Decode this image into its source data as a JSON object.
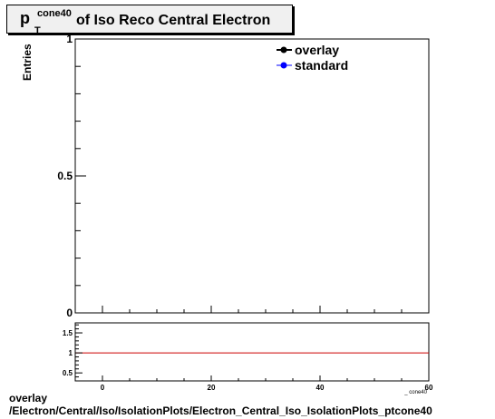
{
  "chart_data": {
    "type": "line",
    "title": {
      "base": "p",
      "sup": "cone40",
      "sub": "T",
      "rest": "of Iso Reco Central  Electron"
    },
    "ylabel": "Entries",
    "xlabel": "_ cone40",
    "xlim": [
      -5,
      60
    ],
    "ylim": [
      0,
      1
    ],
    "x_ticks": [
      0,
      20,
      40,
      60
    ],
    "y_ticks": [
      0,
      0.5,
      1
    ],
    "y_tick_labels": [
      "0",
      "0.5",
      "1"
    ],
    "legend": {
      "placement": "top-right",
      "entries": [
        {
          "label": "overlay",
          "color": "#000000"
        },
        {
          "label": "standard",
          "color": "#0000ff"
        }
      ]
    },
    "series": [],
    "ratio_panel": {
      "ylim": [
        0.3,
        1.75
      ],
      "y_ticks": [
        0.5,
        1,
        1.5
      ],
      "y_tick_labels": [
        "0.5",
        "1",
        "1.5"
      ],
      "reference_line": 1,
      "reference_color": "#cc0000"
    }
  },
  "footer": {
    "line1": "overlay",
    "line2": "/Electron/Central/Iso/IsolationPlots/Electron_Central_Iso_IsolationPlots_ptcone40"
  }
}
